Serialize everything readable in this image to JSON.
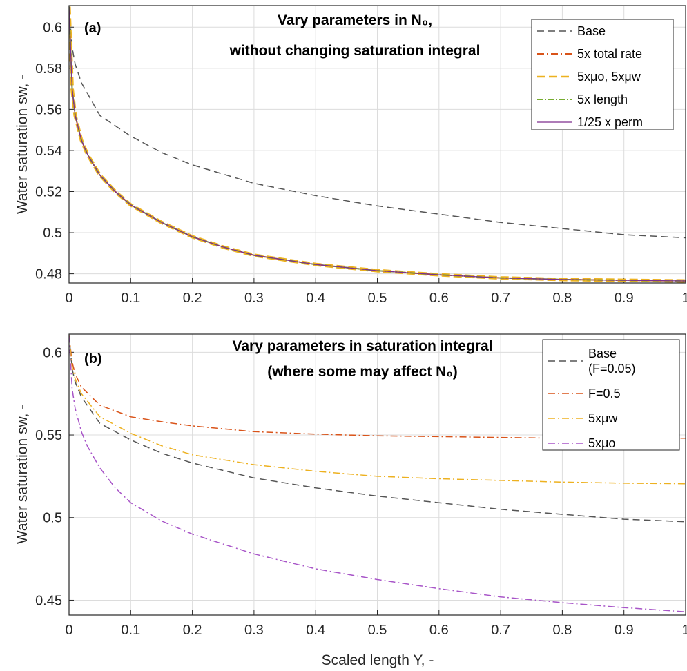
{
  "figure": {
    "xlabel": "Scaled length Y, -"
  },
  "chart_data": [
    {
      "type": "line",
      "panel_label": "(a)",
      "title": [
        "Vary parameters in N₀,",
        "without changing saturation integral"
      ],
      "xlabel": "",
      "ylabel": "Water saturation sw, -",
      "xlim": [
        0,
        1
      ],
      "ylim": [
        0.4755,
        0.6105
      ],
      "xticks": [
        0,
        0.1,
        0.2,
        0.3,
        0.4,
        0.5,
        0.6,
        0.7,
        0.8,
        0.9,
        1
      ],
      "xtick_labels": [
        "0",
        "0.1",
        "0.2",
        "0.3",
        "0.4",
        "0.5",
        "0.6",
        "0.7",
        "0.8",
        "0.9",
        "1"
      ],
      "yticks": [
        0.48,
        0.5,
        0.52,
        0.54,
        0.56,
        0.58,
        0.6
      ],
      "ytick_labels": [
        "0.48",
        "0.5",
        "0.52",
        "0.54",
        "0.56",
        "0.58",
        "0.6"
      ],
      "grid": true,
      "legend_position": "top-right",
      "series": [
        {
          "name": "Base",
          "color": "#555555",
          "dash": "10,6",
          "width": 1.5,
          "x": [
            0,
            0.005,
            0.01,
            0.02,
            0.05,
            0.1,
            0.15,
            0.2,
            0.3,
            0.4,
            0.5,
            0.6,
            0.7,
            0.8,
            0.9,
            1.0
          ],
          "y": [
            0.61,
            0.59,
            0.582,
            0.573,
            0.557,
            0.547,
            0.539,
            0.533,
            0.524,
            0.518,
            0.513,
            0.509,
            0.505,
            0.502,
            0.499,
            0.4975
          ]
        },
        {
          "name": "5x total rate",
          "color": "#D95319",
          "dash": "10,4,2,4",
          "width": 2,
          "x": [
            0,
            0.005,
            0.01,
            0.02,
            0.03,
            0.05,
            0.075,
            0.1,
            0.15,
            0.2,
            0.25,
            0.3,
            0.4,
            0.5,
            0.6,
            0.7,
            0.8,
            0.9,
            1.0
          ],
          "y": [
            0.61,
            0.57,
            0.557,
            0.545,
            0.538,
            0.528,
            0.52,
            0.5135,
            0.505,
            0.498,
            0.493,
            0.489,
            0.4845,
            0.4815,
            0.4795,
            0.478,
            0.4772,
            0.4768,
            0.4765
          ]
        },
        {
          "name": "5xμo, 5xμw",
          "color": "#EDB120",
          "dash": "12,5",
          "width": 5,
          "x": [
            0,
            0.005,
            0.01,
            0.02,
            0.03,
            0.05,
            0.075,
            0.1,
            0.15,
            0.2,
            0.25,
            0.3,
            0.4,
            0.5,
            0.6,
            0.7,
            0.8,
            0.9,
            1.0
          ],
          "y": [
            0.61,
            0.57,
            0.557,
            0.545,
            0.538,
            0.528,
            0.52,
            0.5135,
            0.505,
            0.498,
            0.493,
            0.489,
            0.4845,
            0.4815,
            0.4795,
            0.478,
            0.4772,
            0.4768,
            0.4765
          ]
        },
        {
          "name": "5x length",
          "color": "#77AC30",
          "dash": "8,3,2,3",
          "width": 2,
          "x": [
            0,
            0.005,
            0.01,
            0.02,
            0.03,
            0.05,
            0.075,
            0.1,
            0.15,
            0.2,
            0.25,
            0.3,
            0.4,
            0.5,
            0.6,
            0.7,
            0.8,
            0.9,
            1.0
          ],
          "y": [
            0.61,
            0.57,
            0.557,
            0.545,
            0.538,
            0.528,
            0.52,
            0.5135,
            0.505,
            0.498,
            0.493,
            0.489,
            0.4845,
            0.4815,
            0.4795,
            0.478,
            0.4772,
            0.4768,
            0.4765
          ]
        },
        {
          "name": "1/25 x perm",
          "color": "#7E2F8E",
          "dash": "",
          "width": 1.3,
          "x": [
            0,
            0.005,
            0.01,
            0.02,
            0.03,
            0.05,
            0.075,
            0.1,
            0.15,
            0.2,
            0.25,
            0.3,
            0.4,
            0.5,
            0.6,
            0.7,
            0.8,
            0.9,
            1.0
          ],
          "y": [
            0.61,
            0.57,
            0.557,
            0.545,
            0.538,
            0.528,
            0.52,
            0.5135,
            0.505,
            0.498,
            0.493,
            0.489,
            0.4845,
            0.4815,
            0.4795,
            0.478,
            0.4772,
            0.4768,
            0.4765
          ]
        }
      ]
    },
    {
      "type": "line",
      "panel_label": "(b)",
      "title": [
        "Vary parameters in saturation integral",
        "(where some may affect N₀)"
      ],
      "xlabel": "Scaled length Y, -",
      "ylabel": "Water saturation sw, -",
      "xlim": [
        0,
        1
      ],
      "ylim": [
        0.441,
        0.611
      ],
      "xticks": [
        0,
        0.1,
        0.2,
        0.3,
        0.4,
        0.5,
        0.6,
        0.7,
        0.8,
        0.9,
        1
      ],
      "xtick_labels": [
        "0",
        "0.1",
        "0.2",
        "0.3",
        "0.4",
        "0.5",
        "0.6",
        "0.7",
        "0.8",
        "0.9",
        "1"
      ],
      "yticks": [
        0.45,
        0.5,
        0.55,
        0.6
      ],
      "ytick_labels": [
        "0.45",
        "0.5",
        "0.55",
        "0.6"
      ],
      "grid": true,
      "legend_position": "top-right",
      "series": [
        {
          "name": "Base\n(F=0.05)",
          "color": "#555555",
          "dash": "10,6",
          "width": 1.5,
          "x": [
            0,
            0.005,
            0.01,
            0.02,
            0.05,
            0.1,
            0.15,
            0.2,
            0.3,
            0.4,
            0.5,
            0.6,
            0.7,
            0.8,
            0.9,
            1.0
          ],
          "y": [
            0.61,
            0.59,
            0.582,
            0.573,
            0.557,
            0.547,
            0.539,
            0.533,
            0.524,
            0.518,
            0.513,
            0.509,
            0.505,
            0.502,
            0.499,
            0.4975
          ]
        },
        {
          "name": "F=0.5",
          "color": "#D95319",
          "dash": "10,4,2,4",
          "width": 1.5,
          "x": [
            0,
            0.005,
            0.01,
            0.02,
            0.05,
            0.1,
            0.15,
            0.2,
            0.3,
            0.4,
            0.5,
            0.6,
            0.7,
            0.8,
            0.9,
            1.0
          ],
          "y": [
            0.61,
            0.594,
            0.587,
            0.579,
            0.568,
            0.561,
            0.558,
            0.5555,
            0.552,
            0.5505,
            0.5495,
            0.549,
            0.5485,
            0.548,
            0.548,
            0.548
          ]
        },
        {
          "name": "5xμw",
          "color": "#EDB120",
          "dash": "10,4,2,4",
          "width": 1.5,
          "x": [
            0,
            0.005,
            0.01,
            0.02,
            0.05,
            0.1,
            0.15,
            0.2,
            0.3,
            0.4,
            0.5,
            0.6,
            0.7,
            0.8,
            0.9,
            1.0
          ],
          "y": [
            0.61,
            0.591,
            0.584,
            0.575,
            0.561,
            0.551,
            0.5435,
            0.538,
            0.532,
            0.528,
            0.525,
            0.5235,
            0.5225,
            0.5215,
            0.5208,
            0.5205
          ]
        },
        {
          "name": "5xμo",
          "color": "#A855C8",
          "dash": "10,4,2,4",
          "width": 1.5,
          "x": [
            0,
            0.005,
            0.01,
            0.02,
            0.03,
            0.05,
            0.075,
            0.1,
            0.15,
            0.2,
            0.3,
            0.4,
            0.5,
            0.6,
            0.7,
            0.8,
            0.9,
            1.0
          ],
          "y": [
            0.61,
            0.578,
            0.566,
            0.552,
            0.543,
            0.53,
            0.518,
            0.509,
            0.498,
            0.49,
            0.478,
            0.469,
            0.4625,
            0.457,
            0.452,
            0.4485,
            0.4455,
            0.443
          ]
        }
      ]
    }
  ]
}
